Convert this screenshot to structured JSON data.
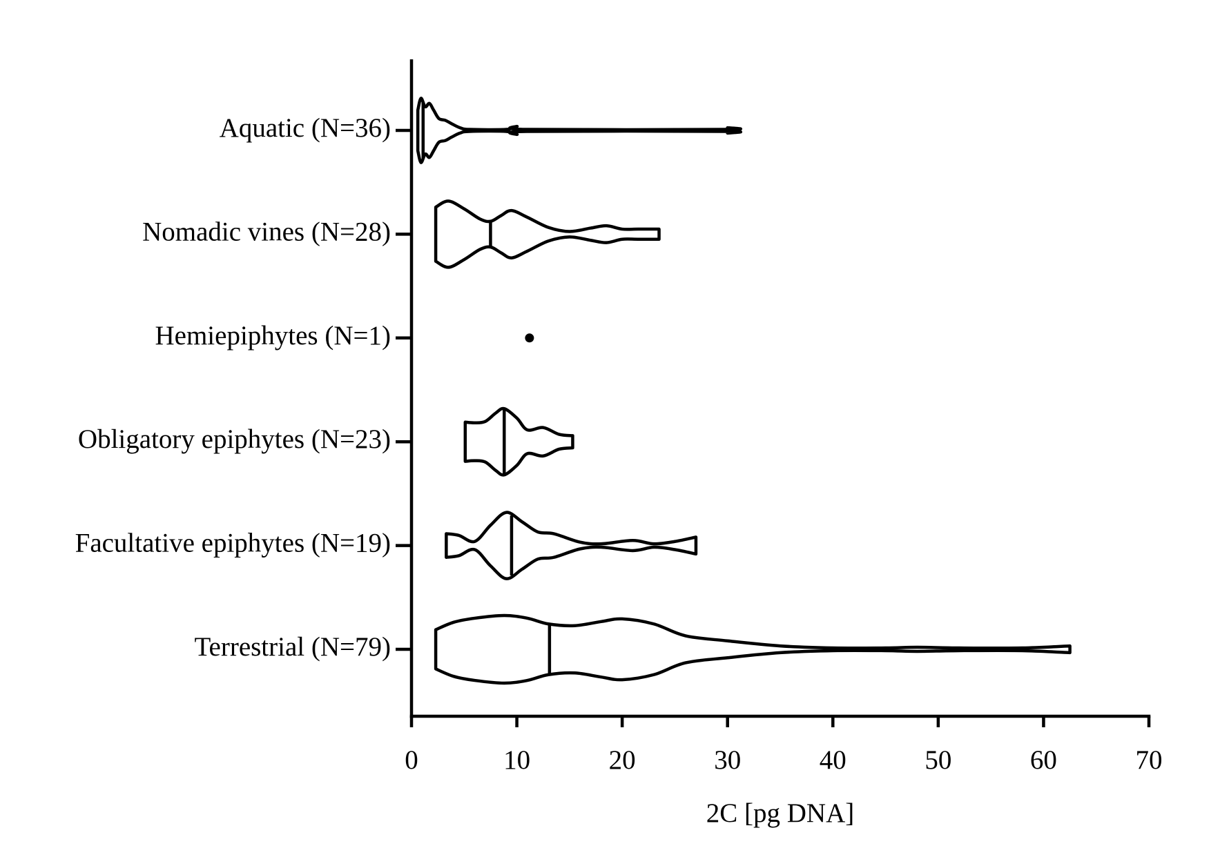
{
  "chart_data": {
    "type": "violin",
    "xlabel": "2C [pg DNA]",
    "xlim": [
      0,
      70
    ],
    "xticks": [
      0,
      10,
      20,
      30,
      40,
      50,
      60,
      70
    ],
    "color": "#000000",
    "series": [
      {
        "name": "Aquatic (N=36)",
        "median": 1.1,
        "x": [
          0.6,
          0.9,
          1.3,
          1.7,
          2.1,
          2.6,
          3.2,
          3.8,
          4.6,
          5.5,
          9,
          10,
          11,
          29.8,
          30
        ],
        "density": [
          0.6,
          0.95,
          0.7,
          0.8,
          0.6,
          0.35,
          0.3,
          0.2,
          0.08,
          0.03,
          0.03,
          0.12,
          0.03,
          0.03,
          0.08
        ]
      },
      {
        "name": "Nomadic vines (N=28)",
        "median": 7.5,
        "x": [
          2.3,
          3.5,
          5,
          6.5,
          7.5,
          8.5,
          9.5,
          11,
          13,
          15,
          17,
          18.5,
          20,
          21.5,
          23.5
        ],
        "density": [
          0.8,
          0.98,
          0.75,
          0.45,
          0.38,
          0.55,
          0.7,
          0.5,
          0.2,
          0.08,
          0.18,
          0.25,
          0.15,
          0.15,
          0.15
        ]
      },
      {
        "name": "Hemiepiphytes (N=1)",
        "points": [
          11.2
        ]
      },
      {
        "name": "Obligatory epiphytes (N=23)",
        "median": 8.8,
        "x": [
          5.1,
          6,
          7,
          8,
          8.8,
          10,
          11,
          12.5,
          14,
          15.3
        ],
        "density": [
          0.58,
          0.56,
          0.6,
          0.85,
          0.98,
          0.7,
          0.35,
          0.42,
          0.22,
          0.18
        ]
      },
      {
        "name": "Facultative epiphytes (N=19)",
        "median": 9.5,
        "x": [
          3.3,
          4.5,
          6,
          7.5,
          9,
          10.5,
          12,
          13.5,
          16,
          18,
          21,
          23,
          25,
          27
        ],
        "density": [
          0.35,
          0.3,
          0.12,
          0.6,
          0.98,
          0.7,
          0.4,
          0.35,
          0.1,
          0.05,
          0.15,
          0.05,
          0.12,
          0.25
        ]
      },
      {
        "name": "Terrestrial (N=79)",
        "median": 13.1,
        "x": [
          2.3,
          4,
          6,
          8.8,
          11,
          13,
          15.5,
          18,
          20,
          23,
          26,
          30,
          35,
          40,
          45,
          48,
          52,
          58,
          62.5
        ],
        "density": [
          0.58,
          0.8,
          0.92,
          1,
          0.92,
          0.75,
          0.7,
          0.82,
          0.9,
          0.75,
          0.4,
          0.25,
          0.1,
          0.04,
          0.04,
          0.06,
          0.04,
          0.04,
          0.1
        ]
      }
    ]
  }
}
